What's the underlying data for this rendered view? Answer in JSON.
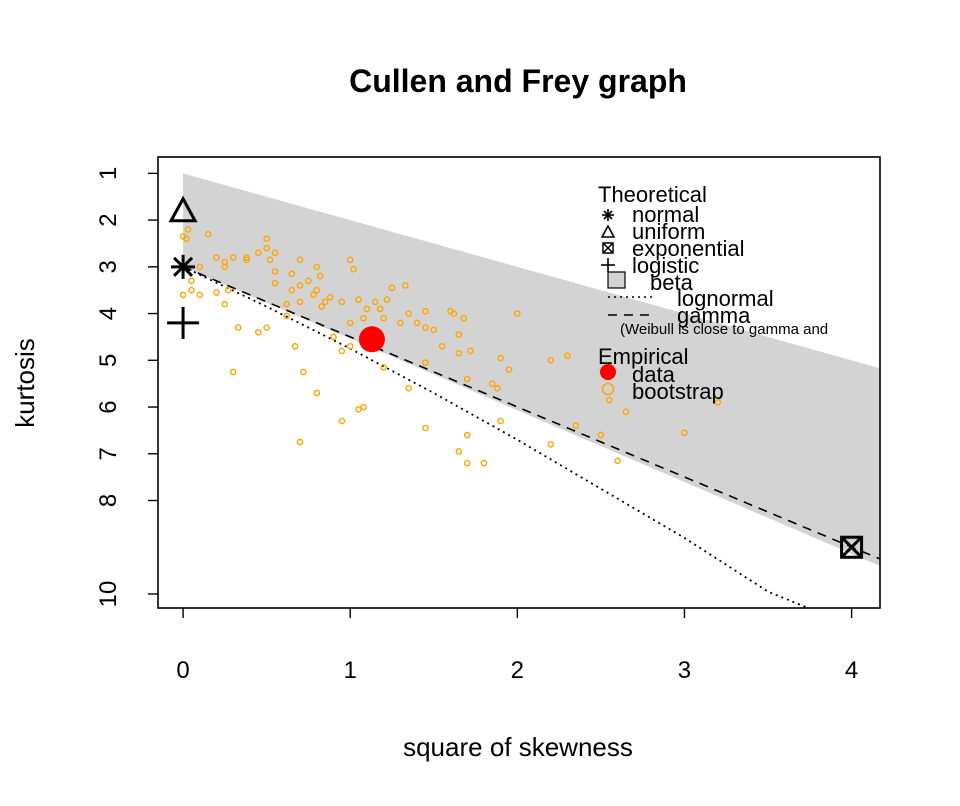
{
  "chart_data": {
    "type": "scatter",
    "title": "Cullen and Frey graph",
    "xlabel": "square of skewness",
    "ylabel": "kurtosis",
    "xlim": [
      -0.15,
      4.17
    ],
    "ylim": [
      10.3,
      0.65
    ],
    "y_reversed": true,
    "x_ticks": [
      0,
      1,
      2,
      3,
      4
    ],
    "y_ticks": [
      1,
      2,
      3,
      4,
      5,
      6,
      7,
      8,
      10
    ],
    "y_tick_labels": [
      "1",
      "2",
      "3",
      "4",
      "5",
      "6",
      "7",
      "8",
      "10"
    ],
    "legend": {
      "theoretical_title": "Theoretical",
      "theoretical_items": [
        "normal",
        "uniform",
        "exponential",
        "logistic",
        "beta",
        "lognormal",
        "gamma"
      ],
      "note": "(Weibull is close to gamma and",
      "empirical_title": "Empirical",
      "empirical_items": [
        "data",
        "bootstrap"
      ],
      "placement": "top-right"
    },
    "theoretical_points": [
      {
        "name": "normal",
        "x": 0,
        "y": 3,
        "marker": "asterisk"
      },
      {
        "name": "uniform",
        "x": 0,
        "y": 1.8,
        "marker": "triangle"
      },
      {
        "name": "exponential",
        "x": 4,
        "y": 9,
        "marker": "boxed-x"
      },
      {
        "name": "logistic",
        "x": 0,
        "y": 4.2,
        "marker": "plus"
      }
    ],
    "beta_region": [
      [
        0,
        1
      ],
      [
        4.17,
        5.17
      ],
      [
        4.17,
        9.4
      ],
      [
        0,
        3
      ]
    ],
    "gamma_line": [
      [
        0,
        3
      ],
      [
        4.17,
        9.25
      ]
    ],
    "lognormal_line": [
      [
        0,
        3
      ],
      [
        0.5,
        3.85
      ],
      [
        1,
        4.75
      ],
      [
        1.5,
        5.7
      ],
      [
        2,
        6.7
      ],
      [
        2.5,
        7.75
      ],
      [
        3,
        8.8
      ],
      [
        3.5,
        9.95
      ],
      [
        3.74,
        10.3
      ]
    ],
    "data_point": {
      "x": 1.13,
      "y": 4.55
    },
    "bootstrap": [
      [
        0.0,
        2.35
      ],
      [
        0.03,
        2.2
      ],
      [
        0.02,
        2.4
      ],
      [
        0.15,
        2.3
      ],
      [
        0.0,
        3.0
      ],
      [
        0.05,
        3.3
      ],
      [
        0.1,
        3.0
      ],
      [
        0.2,
        2.8
      ],
      [
        0.25,
        2.9
      ],
      [
        0.25,
        3.0
      ],
      [
        0.3,
        2.8
      ],
      [
        0.38,
        2.8
      ],
      [
        0.38,
        2.85
      ],
      [
        0.45,
        2.7
      ],
      [
        0.5,
        2.4
      ],
      [
        0.5,
        2.6
      ],
      [
        0.52,
        2.85
      ],
      [
        0.55,
        2.7
      ],
      [
        0.0,
        3.6
      ],
      [
        0.05,
        3.5
      ],
      [
        0.1,
        3.6
      ],
      [
        0.2,
        3.55
      ],
      [
        0.25,
        3.8
      ],
      [
        0.27,
        3.5
      ],
      [
        0.55,
        3.1
      ],
      [
        0.55,
        3.35
      ],
      [
        0.62,
        3.8
      ],
      [
        0.65,
        3.15
      ],
      [
        0.65,
        3.5
      ],
      [
        0.7,
        2.85
      ],
      [
        0.7,
        3.75
      ],
      [
        0.75,
        3.3
      ],
      [
        0.78,
        3.6
      ],
      [
        0.8,
        3.0
      ],
      [
        0.8,
        3.5
      ],
      [
        0.82,
        3.2
      ],
      [
        0.83,
        3.85
      ],
      [
        0.85,
        3.75
      ],
      [
        0.88,
        3.65
      ],
      [
        0.95,
        3.75
      ],
      [
        1.0,
        2.85
      ],
      [
        1.02,
        3.05
      ],
      [
        0.62,
        4.05
      ],
      [
        0.7,
        3.4
      ],
      [
        0.33,
        4.3
      ],
      [
        0.45,
        4.4
      ],
      [
        0.5,
        4.3
      ],
      [
        0.67,
        4.7
      ],
      [
        0.72,
        5.25
      ],
      [
        0.8,
        5.7
      ],
      [
        0.9,
        4.5
      ],
      [
        0.95,
        4.8
      ],
      [
        1.0,
        4.2
      ],
      [
        1.0,
        4.7
      ],
      [
        1.05,
        3.7
      ],
      [
        1.08,
        4.1
      ],
      [
        1.1,
        3.9
      ],
      [
        1.15,
        3.75
      ],
      [
        1.18,
        3.9
      ],
      [
        1.2,
        4.1
      ],
      [
        1.22,
        3.7
      ],
      [
        1.25,
        3.45
      ],
      [
        1.3,
        4.2
      ],
      [
        1.33,
        3.4
      ],
      [
        1.35,
        4.0
      ],
      [
        1.4,
        4.2
      ],
      [
        1.45,
        3.95
      ],
      [
        1.45,
        4.3
      ],
      [
        1.5,
        4.35
      ],
      [
        1.55,
        4.7
      ],
      [
        1.6,
        3.95
      ],
      [
        1.62,
        4.0
      ],
      [
        1.65,
        4.45
      ],
      [
        1.65,
        4.85
      ],
      [
        1.68,
        4.1
      ],
      [
        1.72,
        4.8
      ],
      [
        1.9,
        4.95
      ],
      [
        1.95,
        5.2
      ],
      [
        2.0,
        4.0
      ],
      [
        2.2,
        5.0
      ],
      [
        2.3,
        4.9
      ],
      [
        1.45,
        5.05
      ],
      [
        1.7,
        5.4
      ],
      [
        1.85,
        5.5
      ],
      [
        1.88,
        5.6
      ],
      [
        1.35,
        5.6
      ],
      [
        1.2,
        5.15
      ],
      [
        0.3,
        5.25
      ],
      [
        0.95,
        6.3
      ],
      [
        1.05,
        6.05
      ],
      [
        1.08,
        6.0
      ],
      [
        0.7,
        6.75
      ],
      [
        1.45,
        6.45
      ],
      [
        1.7,
        6.6
      ],
      [
        1.9,
        6.3
      ],
      [
        1.65,
        6.95
      ],
      [
        1.7,
        7.2
      ],
      [
        1.8,
        7.2
      ],
      [
        2.2,
        6.8
      ],
      [
        2.35,
        6.4
      ],
      [
        2.55,
        5.85
      ],
      [
        2.65,
        6.1
      ],
      [
        2.6,
        7.15
      ],
      [
        2.5,
        6.6
      ],
      [
        3.0,
        6.55
      ],
      [
        3.2,
        5.9
      ]
    ],
    "colors": {
      "beta": "#d3d3d3",
      "data": "#ff0000",
      "bootstrap": "#ffa500",
      "line": "#000000"
    }
  }
}
